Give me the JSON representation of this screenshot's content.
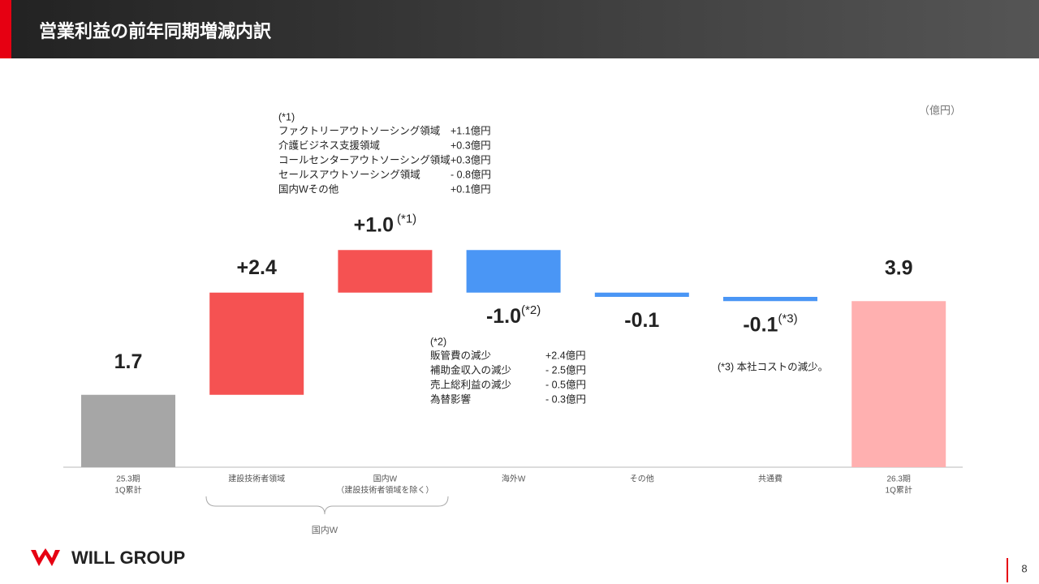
{
  "header": {
    "title": "営業利益の前年同期増減内訳"
  },
  "chart_data": {
    "type": "waterfall",
    "unit": "（億円）",
    "categories": [
      [
        "25.3期",
        "1Q累計"
      ],
      [
        "建設技術者領域"
      ],
      [
        "国内W",
        "（建設技術者領域を除く）"
      ],
      [
        "海外W"
      ],
      [
        "その他"
      ],
      [
        "共通費"
      ],
      [
        "26.3期",
        "1Q累計"
      ]
    ],
    "values": [
      1.7,
      2.4,
      1.0,
      -1.0,
      -0.1,
      -0.1,
      3.9
    ],
    "value_labels": [
      "1.7",
      "+2.4",
      "+1.0",
      "-1.0",
      "-0.1",
      "-0.1",
      "3.9"
    ],
    "value_notes": [
      null,
      null,
      "(*1)",
      "(*2)",
      null,
      "(*3)",
      null
    ],
    "is_total": [
      true,
      false,
      false,
      false,
      false,
      false,
      true
    ],
    "colors": [
      "#a6a6a6",
      "#f55252",
      "#f55252",
      "#4a96f5",
      "#4a96f5",
      "#4a96f5",
      "#ffb0b0"
    ],
    "group_label": "国内W"
  },
  "notes": [
    {
      "marker": "(*1)",
      "rows": [
        [
          "ファクトリーアウトソーシング領域",
          "+1.1億円"
        ],
        [
          "介護ビジネス支援領域",
          "+0.3億円"
        ],
        [
          "コールセンターアウトソーシング領域",
          "+0.3億円"
        ],
        [
          "セールスアウトソーシング領域",
          "- 0.8億円"
        ],
        [
          "国内Wその他",
          "+0.1億円"
        ]
      ]
    },
    {
      "marker": "(*2)",
      "rows": [
        [
          "販管費の減少",
          "+2.4億円"
        ],
        [
          "補助金収入の減少",
          "- 2.5億円"
        ],
        [
          "売上総利益の減少",
          "- 0.5億円"
        ],
        [
          "為替影響",
          "- 0.3億円"
        ]
      ]
    },
    {
      "text": "(*3) 本社コストの減少。"
    }
  ],
  "footer": {
    "logo": "WILL GROUP",
    "page": "8"
  }
}
